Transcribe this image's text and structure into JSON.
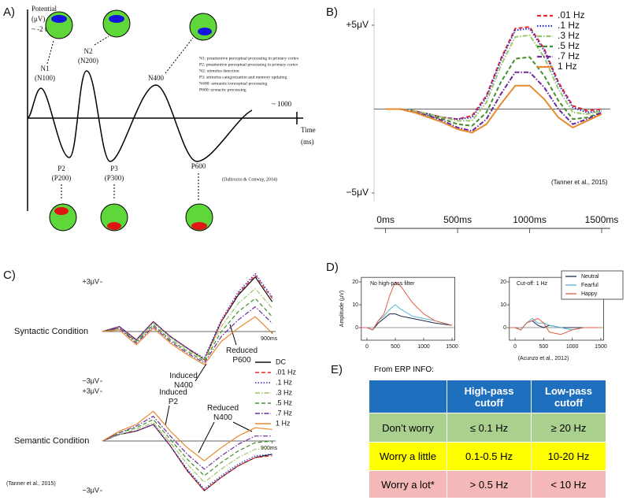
{
  "panel_labels": [
    "A)",
    "B)",
    "C)",
    "D)",
    "E)"
  ],
  "diagram": {
    "y_axis_label": [
      "Potential",
      "(μV)"
    ],
    "y_range_note": "~ -2 to -5",
    "x_end_label": "~ 1000",
    "x_axis_label": [
      "Time",
      "(ms)"
    ],
    "components": [
      {
        "name": "N1",
        "alias": "(N100)"
      },
      {
        "name": "N2",
        "alias": "(N200)"
      },
      {
        "name": "N400"
      },
      {
        "name": "P2",
        "alias": "(P200)"
      },
      {
        "name": "P3",
        "alias": "(P300)"
      },
      {
        "name": "P600"
      }
    ],
    "notes": [
      "N1: preattentive perceptual processing in primary cortex",
      "P2: preattentive perceptual processing in primary cortex",
      "N2: stimulus detection",
      "P3: stimulus categorization and memory updating",
      "N400: semantic/conceptual processing",
      "P600: syntactic processing"
    ],
    "citation": "(Daltrozzo & Conway, 2014)"
  },
  "chart_data": [
    {
      "type": "line",
      "x": [
        0,
        100,
        200,
        300,
        400,
        500,
        600,
        700,
        800,
        900,
        1000,
        1100,
        1200,
        1300,
        1400,
        1500
      ],
      "xlim": [
        -80,
        1560
      ],
      "ylim": [
        -5.5,
        6
      ],
      "yticks": [
        {
          "value": 5,
          "label": "+5μV"
        },
        {
          "value": -5,
          "label": "−5μV"
        }
      ],
      "xticks": [
        {
          "value": 0,
          "label": "0ms"
        },
        {
          "value": 500,
          "label": "500ms"
        },
        {
          "value": 1000,
          "label": "1000ms"
        },
        {
          "value": 1500,
          "label": "1500ms"
        }
      ],
      "legend": "upper right",
      "annotations": [
        "(Tanner et al., 2015)"
      ],
      "series": [
        {
          "name": ".01 Hz",
          "color": "#e8272a",
          "dash": "dashed",
          "values": [
            0,
            0,
            -0.1,
            -0.3,
            -0.5,
            -0.6,
            -0.4,
            0.8,
            3.0,
            4.8,
            4.9,
            3.6,
            1.6,
            0.2,
            -0.1,
            0
          ]
        },
        {
          "name": ".1 Hz",
          "color": "#2b2bd6",
          "dash": "dotted",
          "values": [
            0,
            0,
            -0.1,
            -0.3,
            -0.5,
            -0.6,
            -0.5,
            0.7,
            2.9,
            4.7,
            4.8,
            3.5,
            1.5,
            0.1,
            -0.2,
            -0.1
          ]
        },
        {
          "name": ".3 Hz",
          "color": "#9cc46a",
          "dash": "dashdot",
          "values": [
            0,
            0,
            -0.1,
            -0.3,
            -0.5,
            -0.7,
            -0.7,
            0.4,
            2.6,
            4.3,
            4.4,
            3.1,
            1.2,
            -0.2,
            -0.3,
            -0.1
          ]
        },
        {
          "name": ".5 Hz",
          "color": "#3f8f2a",
          "dash": "dashed",
          "values": [
            0,
            0,
            -0.2,
            -0.4,
            -0.6,
            -0.9,
            -1.0,
            -0.2,
            1.6,
            3.0,
            3.1,
            2.0,
            0.5,
            -0.6,
            -0.5,
            -0.2
          ]
        },
        {
          "name": ".7 Hz",
          "color": "#6a2a9c",
          "dash": "dashdot",
          "values": [
            0,
            0,
            -0.2,
            -0.4,
            -0.7,
            -1.1,
            -1.3,
            -0.6,
            0.9,
            2.2,
            2.2,
            1.3,
            0.0,
            -0.9,
            -0.6,
            -0.2
          ]
        },
        {
          "name": "1 Hz",
          "color": "#e88a2e",
          "dash": "solid",
          "values": [
            0,
            0,
            -0.2,
            -0.5,
            -0.8,
            -1.2,
            -1.4,
            -0.9,
            0.3,
            1.4,
            1.4,
            0.6,
            -0.5,
            -1.1,
            -0.7,
            -0.3
          ]
        }
      ]
    },
    {
      "type": "line",
      "title": "Syntactic Condition",
      "x": [
        -100,
        0,
        100,
        200,
        300,
        400,
        500,
        600,
        700,
        800,
        900
      ],
      "xlim": [
        -100,
        920
      ],
      "ylim": [
        -3.5,
        3.9
      ],
      "yticks": [
        {
          "value": 3,
          "label": "+3μV"
        },
        {
          "value": -3,
          "label": "−3μV"
        }
      ],
      "xticks": [
        {
          "value": 900,
          "label": "900ms"
        }
      ],
      "legend": "right",
      "annotations": [
        [
          "Induced",
          "N400"
        ],
        [
          "Reduced",
          "P600"
        ]
      ],
      "series": [
        {
          "name": "DC",
          "color": "#111111",
          "dash": "solid",
          "values": [
            0.0,
            0.3,
            -0.5,
            0.6,
            -0.3,
            -1.0,
            -1.7,
            0.6,
            2.2,
            3.3,
            1.8
          ]
        },
        {
          "name": ".01 Hz",
          "color": "#e8272a",
          "dash": "dashed",
          "values": [
            0.0,
            0.3,
            -0.5,
            0.6,
            -0.3,
            -1.0,
            -1.7,
            0.6,
            2.3,
            3.4,
            2.0
          ]
        },
        {
          "name": ".1 Hz",
          "color": "#2b2bd6",
          "dash": "dotted",
          "values": [
            0.0,
            0.3,
            -0.5,
            0.6,
            -0.3,
            -1.0,
            -1.6,
            0.7,
            2.4,
            3.5,
            2.1
          ]
        },
        {
          "name": ".3 Hz",
          "color": "#9cc46a",
          "dash": "dashdot",
          "values": [
            0.0,
            0.2,
            -0.6,
            0.5,
            -0.4,
            -1.1,
            -1.7,
            0.3,
            1.7,
            2.6,
            1.4
          ]
        },
        {
          "name": ".5 Hz",
          "color": "#3f8f2a",
          "dash": "dashed",
          "values": [
            0.0,
            0.2,
            -0.6,
            0.4,
            -0.5,
            -1.2,
            -1.8,
            0.0,
            1.2,
            2.0,
            0.9
          ]
        },
        {
          "name": ".7 Hz",
          "color": "#6a2a9c",
          "dash": "dashdot",
          "values": [
            0.0,
            0.2,
            -0.7,
            0.3,
            -0.6,
            -1.3,
            -1.9,
            -0.3,
            0.7,
            1.5,
            0.5
          ]
        },
        {
          "name": "1 Hz",
          "color": "#e88a2e",
          "dash": "solid",
          "values": [
            0.0,
            0.1,
            -0.8,
            0.2,
            -0.7,
            -1.4,
            -2.0,
            -0.6,
            0.2,
            0.9,
            -0.1
          ]
        }
      ]
    },
    {
      "type": "line",
      "title": "Semantic Condition",
      "x": [
        -100,
        0,
        100,
        200,
        300,
        400,
        500,
        600,
        700,
        800,
        900
      ],
      "xlim": [
        -100,
        920
      ],
      "ylim": [
        -3.6,
        3.5
      ],
      "yticks": [
        {
          "value": 3,
          "label": "+3μV"
        },
        {
          "value": -3,
          "label": "−3μV"
        }
      ],
      "xticks": [
        {
          "value": 900,
          "label": "900ms"
        }
      ],
      "annotations": [
        [
          "Induced",
          "P2"
        ],
        [
          "Reduced",
          "N400"
        ],
        "(Tanner et al., 2015)"
      ],
      "series": [
        {
          "color": "#111111",
          "dash": "solid",
          "values": [
            0.0,
            0.4,
            0.6,
            1.0,
            -0.3,
            -1.8,
            -3.0,
            -2.2,
            -1.5,
            -1.0,
            -0.8
          ]
        },
        {
          "color": "#e8272a",
          "dash": "dashed",
          "values": [
            0.0,
            0.4,
            0.6,
            1.0,
            -0.3,
            -1.8,
            -3.0,
            -2.2,
            -1.5,
            -1.0,
            -0.9
          ]
        },
        {
          "color": "#2b2bd6",
          "dash": "dotted",
          "values": [
            0.0,
            0.4,
            0.6,
            1.0,
            -0.3,
            -1.7,
            -2.9,
            -2.1,
            -1.4,
            -0.9,
            -0.8
          ]
        },
        {
          "color": "#9cc46a",
          "dash": "dashdot",
          "values": [
            0.0,
            0.4,
            0.7,
            1.1,
            -0.1,
            -1.4,
            -2.5,
            -1.7,
            -1.0,
            -0.5,
            -0.4
          ]
        },
        {
          "color": "#3f8f2a",
          "dash": "dashed",
          "values": [
            0.0,
            0.5,
            0.8,
            1.3,
            0.1,
            -1.1,
            -2.1,
            -1.3,
            -0.6,
            -0.1,
            0.0
          ]
        },
        {
          "color": "#6a2a9c",
          "dash": "dashdot",
          "values": [
            0.0,
            0.5,
            0.9,
            1.5,
            0.3,
            -0.8,
            -1.7,
            -0.9,
            -0.2,
            0.3,
            0.3
          ]
        },
        {
          "color": "#e88a2e",
          "dash": "solid",
          "values": [
            0.0,
            0.6,
            1.0,
            1.8,
            0.6,
            -0.4,
            -1.2,
            -0.4,
            0.3,
            0.8,
            0.7
          ]
        }
      ]
    },
    {
      "type": "line",
      "title": "No high-pass filter",
      "ylabel": "Amplitude (μV)",
      "x": [
        -100,
        0,
        100,
        200,
        300,
        400,
        500,
        600,
        800,
        1000,
        1200,
        1500
      ],
      "xlim": [
        -100,
        1550
      ],
      "ylim": [
        -5.5,
        22
      ],
      "yticks": [
        0,
        10,
        20
      ],
      "xticks": [
        0,
        500,
        1000,
        1500
      ],
      "series": [
        {
          "color": "#1b2a49",
          "dash": "solid",
          "values": [
            0,
            0,
            -1,
            2,
            4,
            6,
            6,
            5,
            4,
            3,
            2,
            1
          ]
        },
        {
          "color": "#5ab4d6",
          "dash": "solid",
          "values": [
            0,
            0,
            -1,
            3,
            5,
            8,
            10,
            8,
            5,
            4,
            3,
            1
          ]
        },
        {
          "color": "#e0614a",
          "dash": "solid",
          "values": [
            0,
            0,
            -1,
            3,
            6,
            14,
            20,
            18,
            11,
            6,
            3,
            1
          ]
        }
      ]
    },
    {
      "type": "line",
      "title": "Cut-off: 1 Hz",
      "x": [
        -100,
        0,
        100,
        200,
        300,
        400,
        500,
        600,
        800,
        1000,
        1200,
        1500
      ],
      "xlim": [
        -100,
        1550
      ],
      "ylim": [
        -5.5,
        22
      ],
      "yticks": [
        0,
        10,
        20
      ],
      "xticks": [
        0,
        500,
        1000,
        1500
      ],
      "legend": "upper right",
      "annotations": [
        "(Acunzo et al., 2012)"
      ],
      "series": [
        {
          "name": "Neutral",
          "color": "#1b2a49",
          "dash": "solid",
          "values": [
            0,
            0,
            -1,
            2,
            3,
            1,
            0,
            1,
            0,
            0,
            0,
            0
          ]
        },
        {
          "name": "Fearful",
          "color": "#5ab4d6",
          "dash": "solid",
          "values": [
            0,
            0,
            -1,
            2,
            4,
            2,
            2,
            1,
            0,
            -1,
            0,
            0
          ]
        },
        {
          "name": "Happy",
          "color": "#e0614a",
          "dash": "solid",
          "values": [
            0,
            0,
            -1,
            2,
            3,
            4,
            2,
            -2,
            -3,
            -1,
            0,
            0
          ]
        }
      ]
    }
  ],
  "table": {
    "caption": "From ERP INFO:",
    "header": [
      "High-pass cutoff",
      "Low-pass cutoff"
    ],
    "rows": [
      [
        "Don’t worry",
        "≤ 0.1 Hz",
        "≥ 20 Hz"
      ],
      [
        "Worry a little",
        "0.1-0.5 Hz",
        "10-20 Hz"
      ],
      [
        "Worry a lot*",
        "> 0.5 Hz",
        "< 10 Hz"
      ]
    ]
  }
}
